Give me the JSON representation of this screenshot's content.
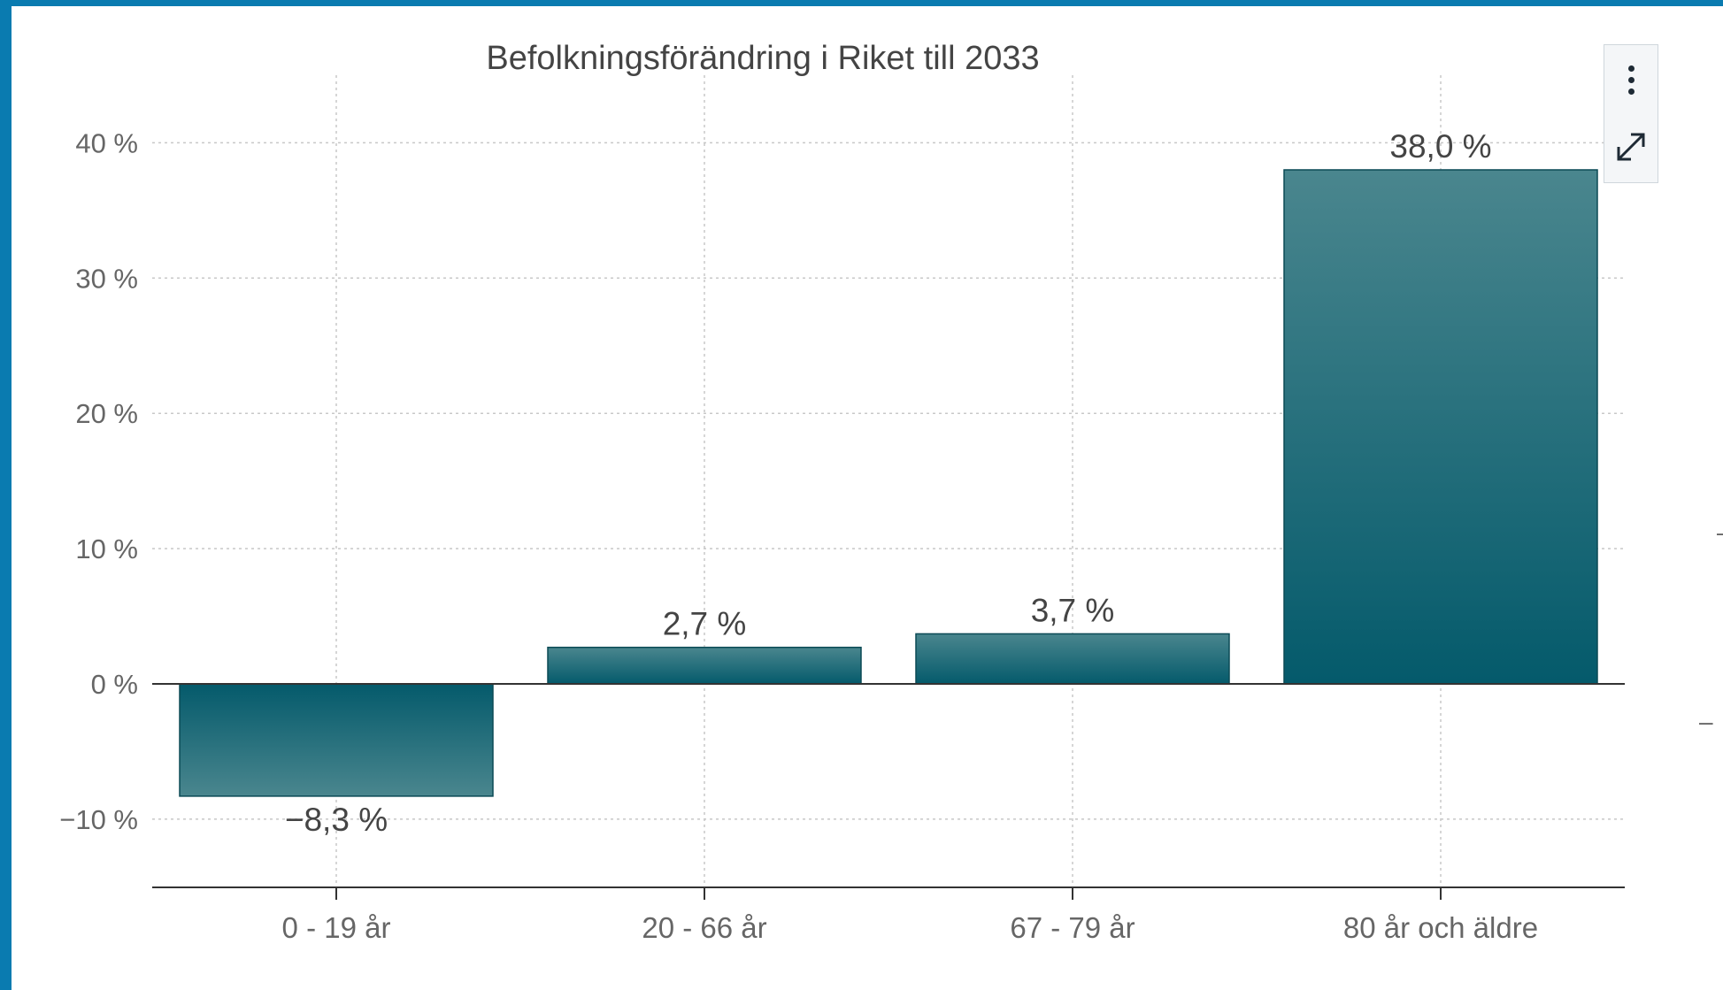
{
  "chart_data": {
    "type": "bar",
    "title": "Befolkningsförändring i Riket till 2033",
    "categories": [
      "0 - 19 år",
      "20 - 66 år",
      "67 - 79 år",
      "80 år och äldre"
    ],
    "values": [
      -8.3,
      2.7,
      3.7,
      38.0
    ],
    "data_labels": [
      "−8,3 %",
      "2,7 %",
      "3,7 %",
      "38,0 %"
    ],
    "ylim": [
      -15,
      45
    ],
    "yticks": [
      40,
      30,
      20,
      10,
      0,
      -10
    ],
    "ytick_labels": [
      "40 %",
      "30 %",
      "20 %",
      "10 %",
      "0 %",
      "−10 %"
    ],
    "grid": true,
    "bar_color_top": "#4a868e",
    "bar_color_bottom": "#045a6b"
  },
  "toolbar": {
    "menu_icon": "more-vertical-icon",
    "expand_icon": "expand-icon"
  }
}
